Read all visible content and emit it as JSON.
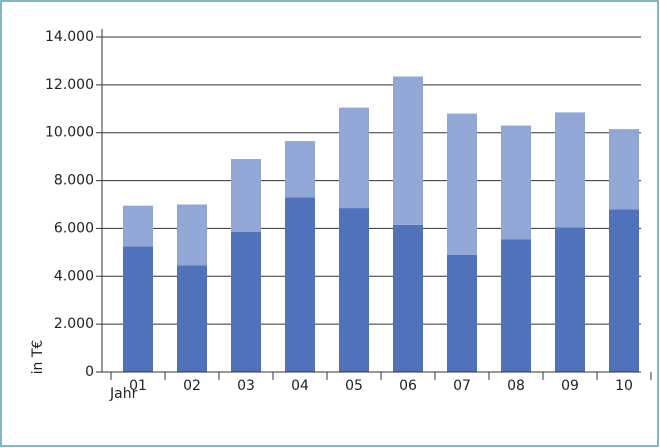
{
  "chart_data": {
    "type": "stacked_bar",
    "x_label": "Jahr",
    "y_label": "in T€",
    "categories": [
      "01",
      "02",
      "03",
      "04",
      "05",
      "06",
      "07",
      "08",
      "09",
      "10"
    ],
    "series": [
      {
        "color": "#5072bb",
        "values": [
          5250,
          4450,
          5850,
          7300,
          6850,
          6150,
          4900,
          5550,
          6050,
          6800
        ]
      },
      {
        "color": "#93a7d7",
        "values": [
          1700,
          2550,
          3050,
          2350,
          4200,
          6200,
          5900,
          4750,
          4800,
          3350
        ]
      }
    ],
    "ylim": [
      0,
      14000
    ],
    "yticks": [
      0,
      {
        "value": 2000,
        "label": "2.000"
      },
      {
        "value": 4000,
        "label": "4.000"
      },
      {
        "value": 6000,
        "label": "6.000"
      },
      {
        "value": 8000,
        "label": "8.000"
      },
      {
        "value": 10000,
        "label": "10.000"
      },
      {
        "value": 12000,
        "label": "12.000"
      },
      {
        "value": 14000,
        "label": "14.000"
      }
    ],
    "grid": true
  }
}
